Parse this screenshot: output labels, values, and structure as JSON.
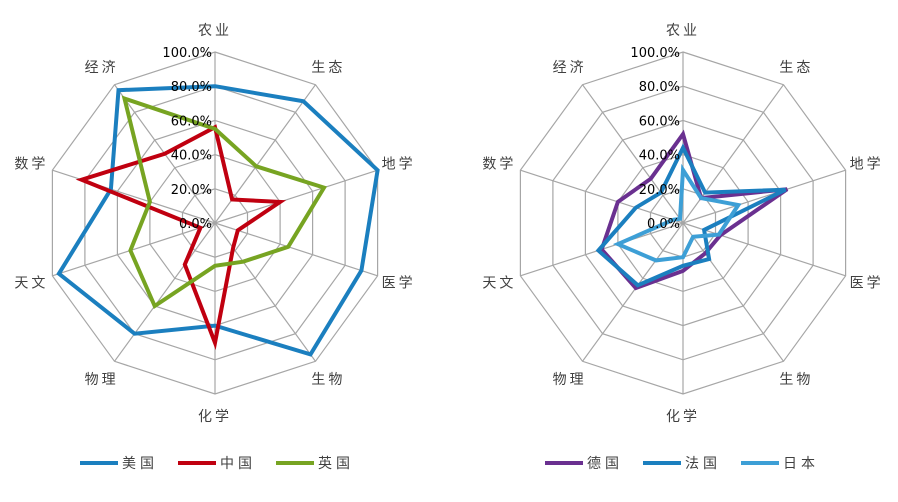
{
  "chart_data": [
    {
      "type": "radar",
      "categories": [
        "农业",
        "生态",
        "地学",
        "医学",
        "生物",
        "化学",
        "物理",
        "天文",
        "数学",
        "经济"
      ],
      "tick_labels": [
        "0.0%",
        "20.0%",
        "40.0%",
        "60.0%",
        "80.0%",
        "100.0%"
      ],
      "rlim": [
        0,
        100
      ],
      "grid": true,
      "legend_position": "bottom",
      "series": [
        {
          "name": "美国",
          "color": "#1b7fbf",
          "values": [
            80,
            88,
            100,
            90,
            95,
            60,
            80,
            96,
            64,
            96
          ]
        },
        {
          "name": "中国",
          "color": "#c00010",
          "values": [
            56,
            17,
            40,
            14,
            18,
            70,
            30,
            9,
            82,
            50
          ]
        },
        {
          "name": "英国",
          "color": "#77a422",
          "values": [
            55,
            41,
            67,
            45,
            28,
            25,
            60,
            52,
            40,
            90
          ]
        }
      ]
    },
    {
      "type": "radar",
      "categories": [
        "农业",
        "生态",
        "地学",
        "医学",
        "生物",
        "化学",
        "物理",
        "天文",
        "数学",
        "经济"
      ],
      "tick_labels": [
        "0.0%",
        "20.0%",
        "40.0%",
        "60.0%",
        "80.0%",
        "100.0%"
      ],
      "rlim": [
        0,
        100
      ],
      "grid": true,
      "legend_position": "bottom",
      "series": [
        {
          "name": "德国",
          "color": "#6a3090",
          "values": [
            52,
            18,
            64,
            23,
            22,
            28,
            47,
            50,
            40,
            32
          ]
        },
        {
          "name": "法国",
          "color": "#1b7fbf",
          "values": [
            44,
            22,
            63,
            13,
            26,
            25,
            45,
            52,
            29,
            22
          ]
        },
        {
          "name": "日本",
          "color": "#3d9fd6",
          "values": [
            31,
            18,
            34,
            22,
            10,
            20,
            27,
            40,
            6,
            3
          ]
        }
      ]
    }
  ]
}
